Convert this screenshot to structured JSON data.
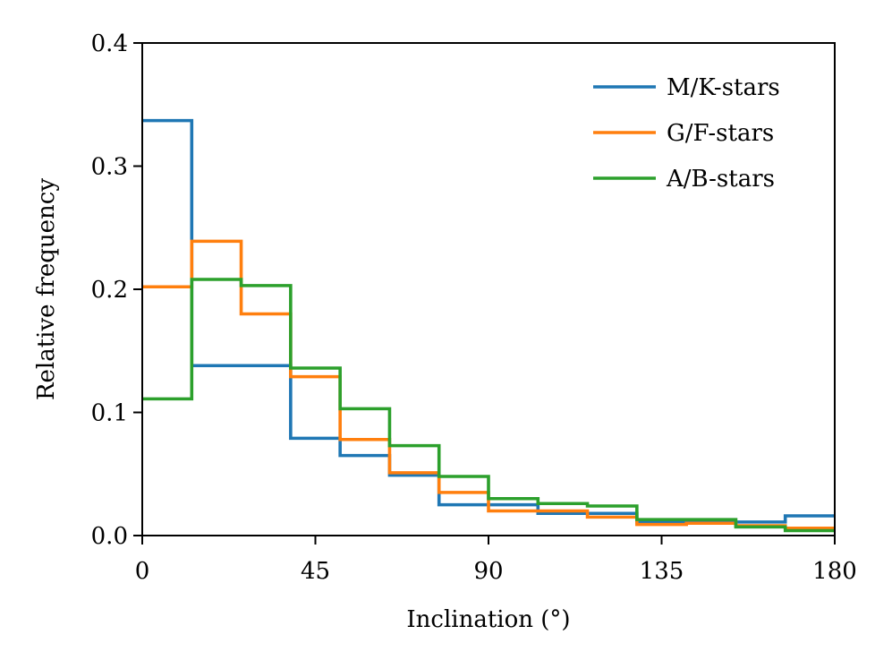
{
  "chart_data": {
    "type": "step-histogram",
    "title": "",
    "xlabel": "Inclination (°)",
    "ylabel": "Relative frequency",
    "xlim": [
      0,
      180
    ],
    "ylim": [
      0,
      0.4
    ],
    "xticks": [
      0,
      45,
      90,
      135,
      180
    ],
    "xtick_labels": [
      "0",
      "45",
      "90",
      "135",
      "180"
    ],
    "yticks": [
      0.0,
      0.1,
      0.2,
      0.3,
      0.4
    ],
    "ytick_labels": [
      "0.0",
      "0.1",
      "0.2",
      "0.3",
      "0.4"
    ],
    "bin_edges": [
      0,
      12.86,
      25.71,
      38.57,
      51.43,
      64.29,
      77.14,
      90,
      102.86,
      115.71,
      128.57,
      141.43,
      154.29,
      167.14,
      180
    ],
    "legend_position": "top-right",
    "series": [
      {
        "name": "M/K-stars",
        "color": "#1f77b4",
        "values": [
          0.337,
          0.138,
          0.138,
          0.079,
          0.065,
          0.049,
          0.025,
          0.025,
          0.018,
          0.018,
          0.011,
          0.011,
          0.011,
          0.016
        ]
      },
      {
        "name": "G/F-stars",
        "color": "#ff7f0e",
        "values": [
          0.202,
          0.239,
          0.18,
          0.129,
          0.078,
          0.051,
          0.035,
          0.02,
          0.02,
          0.015,
          0.009,
          0.01,
          0.008,
          0.006
        ]
      },
      {
        "name": "A/B-stars",
        "color": "#2ca02c",
        "values": [
          0.111,
          0.208,
          0.203,
          0.136,
          0.103,
          0.073,
          0.048,
          0.03,
          0.026,
          0.024,
          0.013,
          0.013,
          0.007,
          0.004
        ]
      }
    ]
  }
}
